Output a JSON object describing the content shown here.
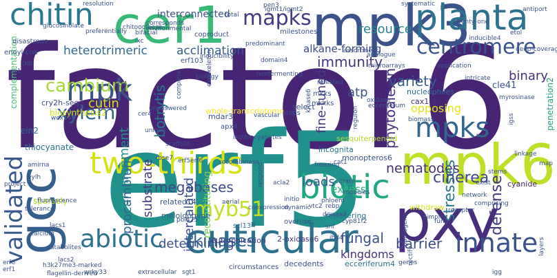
{
  "words": [
    {
      "text": "factor6",
      "color": "#482475"
    },
    {
      "text": "erf5",
      "color": "#21918c"
    },
    {
      "text": "mpk3",
      "color": "#3b528b"
    },
    {
      "text": "mpk6",
      "color": "#bddf26"
    },
    {
      "text": "pxy",
      "color": "#472d7b"
    },
    {
      "text": "cer1",
      "color": "#38b977"
    },
    {
      "text": "gcc",
      "color": "#35608d"
    },
    {
      "text": "cuticular",
      "color": "#2c728e"
    },
    {
      "text": "planta",
      "color": "#2c728e"
    },
    {
      "text": "chitin",
      "color": "#2a788e"
    },
    {
      "text": "validated",
      "color": "#38598c"
    },
    {
      "text": "two-thirds",
      "color": "#d8e219"
    },
    {
      "text": "biotic",
      "color": "#22a785"
    },
    {
      "text": "abiotic",
      "color": "#2c728e"
    },
    {
      "text": "innate",
      "color": "#3b528b"
    },
    {
      "text": "mpks",
      "color": "#31678e"
    },
    {
      "text": "mpk",
      "color": "#3b528b"
    },
    {
      "text": "mapks",
      "color": "#443983"
    },
    {
      "text": "centromere",
      "color": "#3b528b"
    },
    {
      "text": "myb51",
      "color": "#c2df23"
    },
    {
      "text": "heterotrimeric",
      "color": "#31688e"
    },
    {
      "text": "acclimation",
      "color": "#34618d"
    },
    {
      "text": "cambium",
      "color": "#a2da37"
    },
    {
      "text": "xylem",
      "color": "#34618d"
    },
    {
      "text": "immunity",
      "color": "#46337f"
    },
    {
      "text": "resource",
      "color": "#25848e"
    },
    {
      "text": "fine-tuned",
      "color": "#453781"
    },
    {
      "text": "phytoalexin",
      "color": "#46337f"
    },
    {
      "text": "botrytis",
      "color": "#2a788e"
    },
    {
      "text": "nematodes",
      "color": "#472c7a"
    },
    {
      "text": "variety",
      "color": "#365c8d"
    },
    {
      "text": "kinases",
      "color": "#31688e"
    },
    {
      "text": "stresses",
      "color": "#2a788e"
    },
    {
      "text": "defense",
      "color": "#443983"
    },
    {
      "text": "cinerea",
      "color": "#404688"
    },
    {
      "text": "megabases",
      "color": "#3e4989"
    },
    {
      "text": "environment",
      "color": "#21918c"
    },
    {
      "text": "substrate",
      "color": "#453882"
    },
    {
      "text": "procambium",
      "color": "#31688e"
    },
    {
      "text": "intercalated",
      "color": "#3b528b"
    },
    {
      "text": "determining",
      "color": "#3b528b"
    },
    {
      "text": "barrier",
      "color": "#3e4989"
    },
    {
      "text": "fungal",
      "color": "#3b528b"
    },
    {
      "text": "kingdoms",
      "color": "#46307e"
    },
    {
      "text": "loads",
      "color": "#375a8c"
    },
    {
      "text": "binary",
      "color": "#46307e"
    },
    {
      "text": "atp",
      "color": "#3b528b"
    },
    {
      "text": "alkane-forming",
      "color": "#3e4989"
    },
    {
      "text": "interconnected",
      "color": "#3b528b"
    },
    {
      "text": "opposing",
      "color": "#e5e419"
    },
    {
      "text": "excess",
      "color": "#2fb47c"
    },
    {
      "text": "reconstituting",
      "color": "#7ad151"
    },
    {
      "text": "cutin",
      "color": "#d0e11c"
    },
    {
      "text": "complementation",
      "color": "#48c16e"
    },
    {
      "text": "ein2",
      "color": "#2d708e"
    },
    {
      "text": "cry2h-seq",
      "color": "#3e4989"
    },
    {
      "text": "thiocyanate",
      "color": "#2c728e"
    },
    {
      "text": "biosynthesis2",
      "color": "#d2e21b"
    },
    {
      "text": "penetration2",
      "color": "#1fa187"
    },
    {
      "text": "cle41",
      "color": "#3b528b"
    },
    {
      "text": "cyanide",
      "color": "#482173"
    },
    {
      "text": "2-oxidase6",
      "color": "#453882"
    },
    {
      "text": "eutrophication",
      "color": "#433e85"
    },
    {
      "text": "ecceriferum4",
      "color": "#2c728e"
    },
    {
      "text": "decedents",
      "color": "#3b528b"
    },
    {
      "text": "circumstances",
      "color": "#3b528b"
    },
    {
      "text": "monopteros6",
      "color": "#3b528b"
    },
    {
      "text": "rewatering",
      "color": "#2c728e"
    },
    {
      "text": "sesquiterpenoid",
      "color": "#b5de2b"
    },
    {
      "text": "incognita",
      "color": "#2c728e"
    },
    {
      "text": "whole-transcriptome",
      "color": "#fde725"
    },
    {
      "text": "nucleophiles",
      "color": "#2e6e8e"
    },
    {
      "text": "cax1-3",
      "color": "#46307e"
    },
    {
      "text": "select",
      "color": "#3b528b"
    },
    {
      "text": "overuse",
      "color": "#3b528b"
    },
    {
      "text": "related14",
      "color": "#3b528b"
    },
    {
      "text": "meloidogyne",
      "color": "#355f8d"
    },
    {
      "text": "scl13",
      "color": "#2c728e"
    },
    {
      "text": "mdar3",
      "color": "#3b528b"
    },
    {
      "text": "apx4",
      "color": "#3b528b"
    },
    {
      "text": "snips",
      "color": "#3b528b"
    },
    {
      "text": "mkks",
      "color": "#3b528b"
    },
    {
      "text": "mkkks",
      "color": "#3b528b"
    },
    {
      "text": "erf103",
      "color": "#3b528b"
    },
    {
      "text": "rci4",
      "color": "#3b528b"
    },
    {
      "text": "disastrous",
      "color": "#3b528b"
    },
    {
      "text": "enoyl-coa",
      "color": "#3b528b"
    },
    {
      "text": "ixb",
      "color": "#3b528b"
    },
    {
      "text": "coproduct",
      "color": "#3b528b"
    },
    {
      "text": "milestones",
      "color": "#3b528b"
    },
    {
      "text": "inducible4",
      "color": "#3b528b"
    },
    {
      "text": "etol",
      "color": "#3b528b"
    },
    {
      "text": "igss",
      "color": "#3b528b"
    },
    {
      "text": "myrosinase",
      "color": "#3b528b"
    },
    {
      "text": "vascular",
      "color": "#3b528b"
    },
    {
      "text": "isothiocyanates",
      "color": "#3b528b"
    },
    {
      "text": "erf5erf6",
      "color": "#3b528b"
    },
    {
      "text": "cer4",
      "color": "#3b528b"
    },
    {
      "text": "amirna",
      "color": "#3b528b"
    },
    {
      "text": "eylh",
      "color": "#3b528b"
    },
    {
      "text": "sparsely",
      "color": "#b5de2b"
    },
    {
      "text": "recombinase",
      "color": "#3b528b"
    },
    {
      "text": "acla2",
      "color": "#3b528b"
    },
    {
      "text": "initio",
      "color": "#3b528b"
    },
    {
      "text": "withdraw",
      "color": "#d8e219"
    },
    {
      "text": "respond",
      "color": "#3b528b"
    },
    {
      "text": "coexpression",
      "color": "#3b528b"
    },
    {
      "text": "dynamic",
      "color": "#3b528b"
    },
    {
      "text": "phloem",
      "color": "#3b528b"
    },
    {
      "text": "rebp",
      "color": "#3b528b"
    },
    {
      "text": "dewax2",
      "color": "#3b528b"
    },
    {
      "text": "cyp81f2",
      "color": "#3b528b"
    },
    {
      "text": "snf",
      "color": "#3b528b"
    },
    {
      "text": "ibd4",
      "color": "#3b528b"
    },
    {
      "text": "vtc2",
      "color": "#3b528b"
    },
    {
      "text": "citrate",
      "color": "#3b528b"
    },
    {
      "text": "freezing",
      "color": "#3b528b"
    },
    {
      "text": "pathogens",
      "color": "#3b528b"
    },
    {
      "text": "pbi425",
      "color": "#3b528b"
    },
    {
      "text": "catabolites",
      "color": "#3b528b"
    },
    {
      "text": "lacs2",
      "color": "#3b528b"
    },
    {
      "text": "lacs1",
      "color": "#3b528b"
    },
    {
      "text": "fluorescence",
      "color": "#3b528b"
    },
    {
      "text": "tolerance",
      "color": "#3b528b"
    },
    {
      "text": "calcium",
      "color": "#3b528b"
    },
    {
      "text": "wrky33",
      "color": "#3b528b"
    },
    {
      "text": "h3k27me3-marked",
      "color": "#3b528b"
    },
    {
      "text": "flagellin-derived",
      "color": "#3b528b"
    },
    {
      "text": "extracellular",
      "color": "#3b528b"
    },
    {
      "text": "sgt1",
      "color": "#3b528b"
    },
    {
      "text": "igg",
      "color": "#3b528b"
    },
    {
      "text": "layers",
      "color": "#3b528b"
    },
    {
      "text": "project",
      "color": "#3b528b"
    },
    {
      "text": "unique",
      "color": "#3b528b"
    },
    {
      "text": "scaffold",
      "color": "#3b528b"
    },
    {
      "text": "rose7",
      "color": "#3b528b"
    },
    {
      "text": "complete",
      "color": "#3b528b"
    },
    {
      "text": "exoskeleton",
      "color": "#3b528b"
    },
    {
      "text": "biology",
      "color": "#3b528b"
    },
    {
      "text": "domain4",
      "color": "#3b528b"
    },
    {
      "text": "unanswered",
      "color": "#3b528b"
    },
    {
      "text": "wox14",
      "color": "#3b528b"
    },
    {
      "text": "ex1",
      "color": "#3b528b"
    },
    {
      "text": "preferentially",
      "color": "#3b528b"
    },
    {
      "text": "chitooctaose",
      "color": "#3b528b"
    },
    {
      "text": "glucosinolate",
      "color": "#3b528b"
    },
    {
      "text": "resolution",
      "color": "#3b528b"
    },
    {
      "text": "corresponds",
      "color": "#3b528b"
    },
    {
      "text": "environmental",
      "color": "#3b528b"
    },
    {
      "text": "bifacial",
      "color": "#3b528b"
    },
    {
      "text": "ixc",
      "color": "#3b528b"
    },
    {
      "text": "inducibility",
      "color": "#3b528b"
    },
    {
      "text": "predominant",
      "color": "#3b528b"
    },
    {
      "text": "total",
      "color": "#3b528b"
    },
    {
      "text": "pen3",
      "color": "#3b528b"
    },
    {
      "text": "igmt1/igmt2",
      "color": "#3b528b"
    },
    {
      "text": "systematic",
      "color": "#3b528b"
    },
    {
      "text": "antiport",
      "color": "#3b528b"
    },
    {
      "text": "twenty-one",
      "color": "#3b528b"
    },
    {
      "text": "deep-coverage",
      "color": "#3b528b"
    },
    {
      "text": "analogue",
      "color": "#3b528b"
    },
    {
      "text": "assortment",
      "color": "#3b528b"
    },
    {
      "text": "microarrays",
      "color": "#3b528b"
    },
    {
      "text": "application",
      "color": "#3b528b"
    },
    {
      "text": "intricate",
      "color": "#3b528b"
    },
    {
      "text": "retested",
      "color": "#3b528b"
    },
    {
      "text": "oxidase",
      "color": "#3b528b"
    },
    {
      "text": "ecceriferum",
      "color": "#3b528b"
    },
    {
      "text": "nonfermenting",
      "color": "#3b528b"
    },
    {
      "text": "kinase6",
      "color": "#3b528b"
    },
    {
      "text": "biomass",
      "color": "#3b528b"
    },
    {
      "text": "regulon",
      "color": "#3b528b"
    },
    {
      "text": "stems",
      "color": "#3b528b"
    },
    {
      "text": "exist",
      "color": "#3b528b"
    },
    {
      "text": "network",
      "color": "#3b528b"
    },
    {
      "text": "comprising",
      "color": "#3b528b"
    },
    {
      "text": "fungi",
      "color": "#3b528b"
    },
    {
      "text": "receptor",
      "color": "#3b528b"
    },
    {
      "text": "simpler",
      "color": "#3b528b"
    },
    {
      "text": "modules",
      "color": "#3b528b"
    },
    {
      "text": "aerial",
      "color": "#3b528b"
    },
    {
      "text": "linkage",
      "color": "#3b528b"
    },
    {
      "text": "map",
      "color": "#3b528b"
    },
    {
      "text": "erf8",
      "color": "#3b528b"
    },
    {
      "text": "erf1",
      "color": "#3b528b"
    },
    {
      "text": "genes",
      "color": "#3b528b"
    },
    {
      "text": "cat1",
      "color": "#3b528b"
    },
    {
      "text": "rectify",
      "color": "#3b528b"
    }
  ]
}
